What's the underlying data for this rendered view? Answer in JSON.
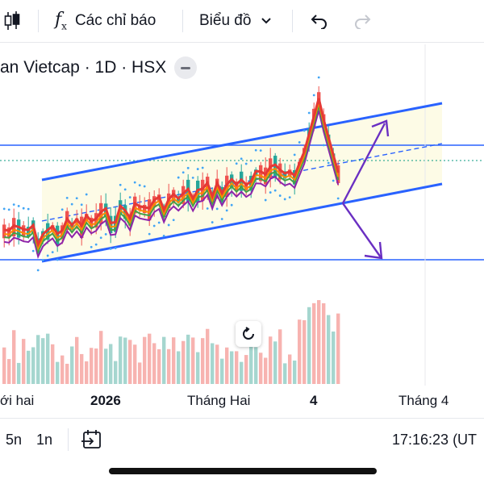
{
  "toolbar": {
    "indicators_label": "Các chỉ báo",
    "chart_type_label": "Biểu đồ"
  },
  "symbol": {
    "title": "an Vietcap · 1D · HSX"
  },
  "time_axis": {
    "labels": [
      "ới hai",
      "2026",
      "Tháng Hai",
      "4",
      "Tháng 4"
    ]
  },
  "bottom_bar": {
    "range_5n": "5n",
    "range_1n": "1n",
    "clock": "17:16:23 (UT"
  },
  "colors": {
    "up": "#26a69a",
    "down": "#ef5350",
    "channel": "#2962ff",
    "arrow": "#6a2fc2",
    "ma_red": "#e53935",
    "ma_purple": "#8e24aa",
    "ma_green": "#43a047",
    "ma_orange": "#fb8c00",
    "psar": "#42a5f5",
    "price_line": "#089981"
  }
}
